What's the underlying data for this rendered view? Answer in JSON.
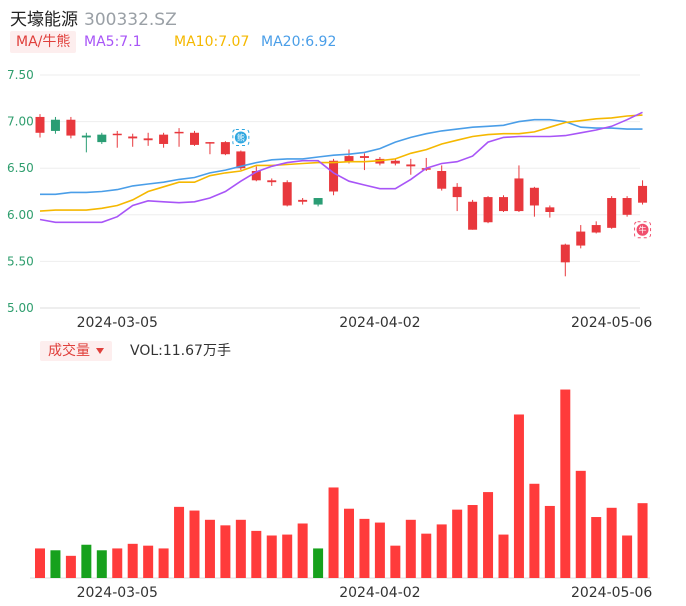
{
  "header": {
    "name": "天壕能源",
    "code": "300332.SZ"
  },
  "ma_legend": {
    "mode": "MA/牛熊",
    "items": [
      {
        "label": "MA5:7.1",
        "color": "#a855f7"
      },
      {
        "label": "MA10:7.07",
        "color": "#f5b800"
      },
      {
        "label": "MA20:6.92",
        "color": "#4a9ee8"
      }
    ]
  },
  "volume_legend": {
    "mode": "成交量",
    "text": "VOL:11.67万手"
  },
  "markers": {
    "bear_icon_label": "熊",
    "bull_icon_label": "牛"
  },
  "colors": {
    "up": "#e8383d",
    "down": "#2a9d74",
    "vol_up": "#ff3b3b",
    "vol_down": "#17a11d",
    "ma5": "#a855f7",
    "ma10": "#f5b800",
    "ma20": "#4a9ee8"
  },
  "chart_data": [
    {
      "type": "candlestick",
      "y_ticks": [
        "7.50",
        "7.00",
        "6.50",
        "6.00",
        "5.50",
        "5.00"
      ],
      "ylim": [
        5.0,
        7.5
      ],
      "x_tick_labels": [
        {
          "index": 5,
          "label": "2024-03-05"
        },
        {
          "index": 22,
          "label": "2024-04-02"
        },
        {
          "index": 37,
          "label": "2024-05-06"
        }
      ],
      "candles": [
        {
          "o": 6.88,
          "c": 7.05,
          "h": 7.08,
          "l": 6.83
        },
        {
          "o": 7.02,
          "c": 6.9,
          "h": 7.05,
          "l": 6.87
        },
        {
          "o": 6.85,
          "c": 7.02,
          "h": 7.05,
          "l": 6.82
        },
        {
          "o": 6.85,
          "c": 6.83,
          "h": 6.88,
          "l": 6.67
        },
        {
          "o": 6.86,
          "c": 6.78,
          "h": 6.88,
          "l": 6.76
        },
        {
          "o": 6.86,
          "c": 6.87,
          "h": 6.9,
          "l": 6.72
        },
        {
          "o": 6.82,
          "c": 6.84,
          "h": 6.87,
          "l": 6.73
        },
        {
          "o": 6.8,
          "c": 6.82,
          "h": 6.88,
          "l": 6.74
        },
        {
          "o": 6.76,
          "c": 6.86,
          "h": 6.88,
          "l": 6.72
        },
        {
          "o": 6.88,
          "c": 6.89,
          "h": 6.93,
          "l": 6.73
        },
        {
          "o": 6.75,
          "c": 6.88,
          "h": 6.9,
          "l": 6.74
        },
        {
          "o": 6.77,
          "c": 6.78,
          "h": 6.78,
          "l": 6.65
        },
        {
          "o": 6.65,
          "c": 6.78,
          "h": 6.79,
          "l": 6.64
        },
        {
          "o": 6.5,
          "c": 6.68,
          "h": 6.69,
          "l": 6.48
        },
        {
          "o": 6.37,
          "c": 6.47,
          "h": 6.52,
          "l": 6.36
        },
        {
          "o": 6.35,
          "c": 6.37,
          "h": 6.39,
          "l": 6.31
        },
        {
          "o": 6.1,
          "c": 6.35,
          "h": 6.37,
          "l": 6.09
        },
        {
          "o": 6.14,
          "c": 6.16,
          "h": 6.18,
          "l": 6.11
        },
        {
          "o": 6.18,
          "c": 6.11,
          "h": 6.18,
          "l": 6.09
        },
        {
          "o": 6.25,
          "c": 6.58,
          "h": 6.6,
          "l": 6.21
        },
        {
          "o": 6.57,
          "c": 6.63,
          "h": 6.7,
          "l": 6.55
        },
        {
          "o": 6.61,
          "c": 6.63,
          "h": 6.66,
          "l": 6.48
        },
        {
          "o": 6.55,
          "c": 6.6,
          "h": 6.62,
          "l": 6.53
        },
        {
          "o": 6.55,
          "c": 6.58,
          "h": 6.6,
          "l": 6.53
        },
        {
          "o": 6.52,
          "c": 6.54,
          "h": 6.6,
          "l": 6.43
        },
        {
          "o": 6.49,
          "c": 6.5,
          "h": 6.61,
          "l": 6.47
        },
        {
          "o": 6.28,
          "c": 6.47,
          "h": 6.53,
          "l": 6.26
        },
        {
          "o": 6.19,
          "c": 6.3,
          "h": 6.34,
          "l": 6.04
        },
        {
          "o": 5.84,
          "c": 6.14,
          "h": 6.16,
          "l": 5.84
        },
        {
          "o": 5.92,
          "c": 6.19,
          "h": 6.2,
          "l": 5.91
        },
        {
          "o": 6.04,
          "c": 6.19,
          "h": 6.21,
          "l": 6.03
        },
        {
          "o": 6.04,
          "c": 6.39,
          "h": 6.53,
          "l": 6.03
        },
        {
          "o": 6.1,
          "c": 6.29,
          "h": 6.3,
          "l": 5.98
        },
        {
          "o": 6.03,
          "c": 6.08,
          "h": 6.1,
          "l": 5.97
        },
        {
          "o": 5.49,
          "c": 5.68,
          "h": 5.69,
          "l": 5.34
        },
        {
          "o": 5.67,
          "c": 5.82,
          "h": 5.89,
          "l": 5.64
        },
        {
          "o": 5.81,
          "c": 5.89,
          "h": 5.93,
          "l": 5.8
        },
        {
          "o": 5.86,
          "c": 6.18,
          "h": 6.2,
          "l": 5.85
        },
        {
          "o": 6.0,
          "c": 6.18,
          "h": 6.2,
          "l": 5.98
        },
        {
          "o": 6.13,
          "c": 6.31,
          "h": 6.37,
          "l": 6.11
        }
      ],
      "ma5": [
        5.95,
        5.92,
        5.92,
        5.92,
        5.92,
        5.98,
        6.1,
        6.15,
        6.14,
        6.13,
        6.14,
        6.18,
        6.25,
        6.36,
        6.46,
        6.52,
        6.56,
        6.58,
        6.58,
        6.45,
        6.36,
        6.32,
        6.28,
        6.28,
        6.38,
        6.5,
        6.55,
        6.57,
        6.63,
        6.78,
        6.83,
        6.84,
        6.84,
        6.84,
        6.85,
        6.88,
        6.91,
        6.95,
        7.02,
        7.1
      ],
      "ma10": [
        6.04,
        6.05,
        6.05,
        6.05,
        6.07,
        6.1,
        6.16,
        6.25,
        6.3,
        6.35,
        6.35,
        6.42,
        6.45,
        6.47,
        6.53,
        6.53,
        6.54,
        6.55,
        6.56,
        6.56,
        6.57,
        6.57,
        6.58,
        6.6,
        6.66,
        6.7,
        6.76,
        6.8,
        6.84,
        6.86,
        6.87,
        6.87,
        6.89,
        6.94,
        6.99,
        7.01,
        7.03,
        7.04,
        7.06,
        7.07
      ],
      "ma20": [
        6.22,
        6.22,
        6.24,
        6.24,
        6.25,
        6.27,
        6.31,
        6.33,
        6.35,
        6.38,
        6.4,
        6.45,
        6.48,
        6.52,
        6.56,
        6.59,
        6.6,
        6.6,
        6.62,
        6.64,
        6.65,
        6.67,
        6.71,
        6.78,
        6.83,
        6.87,
        6.9,
        6.92,
        6.94,
        6.95,
        6.96,
        7.0,
        7.02,
        7.02,
        7.0,
        6.94,
        6.93,
        6.93,
        6.92,
        6.92
      ],
      "bear_marker_index": 13,
      "bull_marker_index": 39
    },
    {
      "type": "bar",
      "series": [
        {
          "values": [
            3.2,
            3.0,
            2.4,
            3.6,
            3.0,
            3.2,
            3.7,
            3.5,
            3.2,
            7.7,
            7.3,
            6.3,
            5.7,
            6.3,
            5.1,
            4.6,
            4.7,
            5.9,
            3.2,
            9.8,
            7.5,
            6.4,
            6.0,
            3.5,
            6.3,
            4.8,
            5.8,
            7.4,
            7.9,
            9.3,
            4.7,
            17.7,
            10.2,
            7.8,
            20.4,
            11.6,
            6.6,
            7.6,
            4.6,
            8.1
          ]
        }
      ]
    }
  ]
}
